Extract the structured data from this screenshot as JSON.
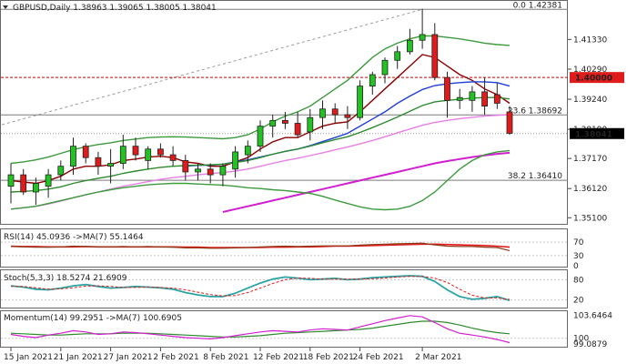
{
  "chart_data": {
    "type": "candlestick",
    "main": {
      "header": "GBPUSD,Daily  1.38963 1.39065 1.38005 1.38041",
      "y_ticks": [
        "1.41330",
        "1.40290",
        "1.39240",
        "1.38190",
        "1.37170",
        "1.36120",
        "1.35100"
      ],
      "y_tick_values": [
        1.4133,
        1.4029,
        1.3924,
        1.3819,
        1.3717,
        1.3612,
        1.351
      ],
      "ylim": [
        1.3495,
        1.4258
      ],
      "price_tag_current": "1.38041",
      "price_tag_level": "1.40000",
      "level_value": 1.4,
      "current_value": 1.38041,
      "fib_levels": [
        {
          "label": "0.0 1.42381",
          "value": 1.42381
        },
        {
          "label": "23.6 1.38692",
          "value": 1.38692
        },
        {
          "label": "38.2 1.36410",
          "value": 1.3641
        }
      ],
      "candles": [
        {
          "o": 1.362,
          "h": 1.37,
          "l": 1.356,
          "c": 1.366
        },
        {
          "o": 1.366,
          "h": 1.368,
          "l": 1.359,
          "c": 1.36
        },
        {
          "o": 1.36,
          "h": 1.365,
          "l": 1.3555,
          "c": 1.363
        },
        {
          "o": 1.362,
          "h": 1.368,
          "l": 1.358,
          "c": 1.366
        },
        {
          "o": 1.366,
          "h": 1.371,
          "l": 1.364,
          "c": 1.369
        },
        {
          "o": 1.369,
          "h": 1.379,
          "l": 1.366,
          "c": 1.376
        },
        {
          "o": 1.376,
          "h": 1.377,
          "l": 1.37,
          "c": 1.372
        },
        {
          "o": 1.372,
          "h": 1.374,
          "l": 1.366,
          "c": 1.369
        },
        {
          "o": 1.369,
          "h": 1.375,
          "l": 1.363,
          "c": 1.37
        },
        {
          "o": 1.37,
          "h": 1.38,
          "l": 1.368,
          "c": 1.376
        },
        {
          "o": 1.376,
          "h": 1.379,
          "l": 1.371,
          "c": 1.373
        },
        {
          "o": 1.371,
          "h": 1.376,
          "l": 1.368,
          "c": 1.375
        },
        {
          "o": 1.375,
          "h": 1.377,
          "l": 1.372,
          "c": 1.373
        },
        {
          "o": 1.373,
          "h": 1.376,
          "l": 1.369,
          "c": 1.371
        },
        {
          "o": 1.371,
          "h": 1.373,
          "l": 1.364,
          "c": 1.367
        },
        {
          "o": 1.367,
          "h": 1.37,
          "l": 1.364,
          "c": 1.368
        },
        {
          "o": 1.368,
          "h": 1.37,
          "l": 1.363,
          "c": 1.366
        },
        {
          "o": 1.366,
          "h": 1.37,
          "l": 1.362,
          "c": 1.369
        },
        {
          "o": 1.368,
          "h": 1.376,
          "l": 1.365,
          "c": 1.374
        },
        {
          "o": 1.373,
          "h": 1.378,
          "l": 1.37,
          "c": 1.376
        },
        {
          "o": 1.376,
          "h": 1.385,
          "l": 1.374,
          "c": 1.383
        },
        {
          "o": 1.383,
          "h": 1.387,
          "l": 1.379,
          "c": 1.385
        },
        {
          "o": 1.385,
          "h": 1.388,
          "l": 1.382,
          "c": 1.384
        },
        {
          "o": 1.384,
          "h": 1.388,
          "l": 1.379,
          "c": 1.38
        },
        {
          "o": 1.381,
          "h": 1.389,
          "l": 1.378,
          "c": 1.386
        },
        {
          "o": 1.386,
          "h": 1.392,
          "l": 1.382,
          "c": 1.389
        },
        {
          "o": 1.389,
          "h": 1.391,
          "l": 1.384,
          "c": 1.387
        },
        {
          "o": 1.387,
          "h": 1.39,
          "l": 1.382,
          "c": 1.386
        },
        {
          "o": 1.386,
          "h": 1.399,
          "l": 1.385,
          "c": 1.397
        },
        {
          "o": 1.397,
          "h": 1.402,
          "l": 1.394,
          "c": 1.401
        },
        {
          "o": 1.401,
          "h": 1.407,
          "l": 1.398,
          "c": 1.406
        },
        {
          "o": 1.406,
          "h": 1.411,
          "l": 1.403,
          "c": 1.409
        },
        {
          "o": 1.409,
          "h": 1.417,
          "l": 1.408,
          "c": 1.413
        },
        {
          "o": 1.413,
          "h": 1.424,
          "l": 1.41,
          "c": 1.415
        },
        {
          "o": 1.415,
          "h": 1.419,
          "l": 1.399,
          "c": 1.4
        },
        {
          "o": 1.4,
          "h": 1.402,
          "l": 1.386,
          "c": 1.392
        },
        {
          "o": 1.392,
          "h": 1.396,
          "l": 1.389,
          "c": 1.393
        },
        {
          "o": 1.392,
          "h": 1.397,
          "l": 1.388,
          "c": 1.395
        },
        {
          "o": 1.395,
          "h": 1.4,
          "l": 1.387,
          "c": 1.39
        },
        {
          "o": 1.394,
          "h": 1.398,
          "l": 1.389,
          "c": 1.391
        },
        {
          "o": 1.388,
          "h": 1.39,
          "l": 1.38,
          "c": 1.3805
        }
      ],
      "lines": [
        {
          "color": "#8b0000",
          "values": [
            1.364,
            1.3635,
            1.363,
            1.364,
            1.3655,
            1.368,
            1.369,
            1.369,
            1.3695,
            1.371,
            1.3715,
            1.3722,
            1.3725,
            1.372,
            1.3705,
            1.37,
            1.369,
            1.369,
            1.3705,
            1.372,
            1.375,
            1.3775,
            1.379,
            1.379,
            1.381,
            1.383,
            1.384,
            1.3845,
            1.388,
            1.392,
            1.396,
            1.4,
            1.404,
            1.408,
            1.407,
            1.404,
            1.401,
            1.399,
            1.396,
            1.394,
            1.391
          ]
        },
        {
          "color": "#1f3fd6",
          "values": [
            null,
            null,
            null,
            null,
            null,
            null,
            null,
            null,
            null,
            null,
            null,
            null,
            null,
            null,
            1.369,
            1.3693,
            1.3694,
            1.3697,
            1.3705,
            1.3712,
            1.3722,
            1.3732,
            1.3742,
            1.375,
            1.3762,
            1.3776,
            1.379,
            1.3805,
            1.383,
            1.3855,
            1.388,
            1.391,
            1.3935,
            1.3958,
            1.3972,
            1.3978,
            1.3982,
            1.3985,
            1.3985,
            1.3982,
            1.397
          ]
        },
        {
          "color": "#2e8b2e",
          "values": [
            1.36,
            1.3602,
            1.3605,
            1.361,
            1.3618,
            1.363,
            1.364,
            1.3648,
            1.3655,
            1.3665,
            1.3673,
            1.368,
            1.3686,
            1.369,
            1.3692,
            1.3694,
            1.3695,
            1.3697,
            1.3703,
            1.371,
            1.372,
            1.3732,
            1.3742,
            1.375,
            1.376,
            1.3772,
            1.3783,
            1.3793,
            1.3808,
            1.3825,
            1.3843,
            1.3862,
            1.3882,
            1.3902,
            1.3915,
            1.392,
            1.3924,
            1.3928,
            1.393,
            1.393,
            1.3925
          ]
        },
        {
          "color": "#e77fe7",
          "values": [
            1.354,
            1.3545,
            1.355,
            1.3558,
            1.3568,
            1.358,
            1.359,
            1.36,
            1.361,
            1.362,
            1.3628,
            1.3636,
            1.3644,
            1.365,
            1.3655,
            1.366,
            1.3664,
            1.3668,
            1.3673,
            1.368,
            1.369,
            1.37,
            1.371,
            1.3718,
            1.3727,
            1.3737,
            1.3747,
            1.3757,
            1.3768,
            1.378,
            1.3793,
            1.3807,
            1.382,
            1.3833,
            1.3843,
            1.385,
            1.3856,
            1.3861,
            1.3865,
            1.3868,
            1.387
          ]
        },
        {
          "color": "#d11ed1",
          "values": [
            null,
            null,
            null,
            null,
            null,
            null,
            null,
            null,
            null,
            null,
            null,
            null,
            null,
            null,
            null,
            null,
            null,
            1.353,
            1.354,
            1.355,
            1.356,
            1.357,
            1.358,
            1.359,
            1.36,
            1.361,
            1.362,
            1.363,
            1.364,
            1.365,
            1.366,
            1.367,
            1.368,
            1.369,
            1.37,
            1.3708,
            1.3715,
            1.3722,
            1.3728,
            1.3733,
            1.3737
          ]
        },
        {
          "color": "#3d9a3d",
          "values": [
            1.37,
            1.3705,
            1.3712,
            1.3722,
            1.3735,
            1.3748,
            1.3758,
            1.3766,
            1.3772,
            1.378,
            1.3785,
            1.379,
            1.3792,
            1.3793,
            1.3792,
            1.379,
            1.3788,
            1.3786,
            1.379,
            1.38,
            1.382,
            1.3845,
            1.3865,
            1.388,
            1.39,
            1.393,
            1.396,
            1.399,
            1.403,
            1.407,
            1.41,
            1.412,
            1.4135,
            1.4145,
            1.4145,
            1.414,
            1.4135,
            1.4128,
            1.412,
            1.4115,
            1.4112
          ]
        },
        {
          "color": "#3d9a3d",
          "values": [
            1.354,
            1.3545,
            1.355,
            1.356,
            1.357,
            1.358,
            1.359,
            1.36,
            1.3608,
            1.3615,
            1.362,
            1.3625,
            1.3628,
            1.363,
            1.363,
            1.3628,
            1.3626,
            1.3624,
            1.362,
            1.3615,
            1.3612,
            1.3608,
            1.3605,
            1.36,
            1.3595,
            1.3585,
            1.3572,
            1.356,
            1.3548,
            1.354,
            1.3538,
            1.354,
            1.355,
            1.357,
            1.36,
            1.364,
            1.368,
            1.371,
            1.373,
            1.374,
            1.3745
          ]
        }
      ]
    },
    "rsi": {
      "header": "RSI(14) 45.0936  ->MA(7) 55.1464",
      "y_ticks": [
        "70",
        "30",
        "0"
      ],
      "y_tick_values": [
        70,
        30,
        0
      ],
      "ylim": [
        0,
        100
      ],
      "rsi_values": [
        57,
        56,
        55,
        55,
        56,
        58,
        57,
        56,
        56,
        57,
        56,
        57,
        56,
        55,
        53,
        53,
        52,
        52,
        53,
        54,
        56,
        57,
        58,
        57,
        58,
        59,
        59,
        59,
        61,
        63,
        64,
        65,
        66,
        67,
        62,
        58,
        57,
        57,
        55,
        54,
        45
      ],
      "ma_values": [
        58,
        57,
        57,
        56,
        56,
        56,
        57,
        56,
        56,
        56,
        56,
        56,
        56,
        56,
        55,
        55,
        54,
        54,
        54,
        54,
        54,
        55,
        55,
        56,
        56,
        57,
        58,
        58,
        59,
        60,
        61,
        62,
        63,
        64,
        64,
        63,
        62,
        61,
        60,
        58,
        55
      ]
    },
    "stoch": {
      "header": "Stoch(5,3,3) 18.5274 21.6909",
      "y_ticks": [
        "80",
        "20"
      ],
      "y_tick_values": [
        80,
        20
      ],
      "ylim": [
        0,
        100
      ],
      "k_values": [
        62,
        58,
        52,
        50,
        55,
        62,
        66,
        60,
        55,
        57,
        60,
        58,
        56,
        52,
        42,
        35,
        30,
        30,
        40,
        55,
        70,
        82,
        88,
        85,
        80,
        82,
        84,
        80,
        82,
        86,
        88,
        90,
        92,
        90,
        75,
        50,
        30,
        22,
        25,
        30,
        18.5
      ],
      "d_values": [
        60,
        60,
        56,
        52,
        53,
        56,
        61,
        62,
        60,
        57,
        57,
        58,
        57,
        55,
        50,
        43,
        36,
        32,
        33,
        42,
        55,
        69,
        80,
        85,
        84,
        82,
        82,
        82,
        82,
        83,
        85,
        88,
        90,
        90,
        85,
        72,
        52,
        34,
        26,
        26,
        21.7
      ]
    },
    "momentum": {
      "header": "Momentum(14) 99.2951  ->MA(7) 100.6905",
      "y_ticks": [
        "103.6464",
        "100",
        "99.0879"
      ],
      "y_tick_values": [
        103.6464,
        100,
        99.0879
      ],
      "ylim": [
        98.8,
        104.0
      ],
      "mom_values": [
        100.6,
        100.3,
        100.1,
        100.5,
        100.8,
        101.2,
        101.0,
        100.6,
        100.7,
        101.0,
        100.9,
        100.7,
        100.5,
        100.3,
        100.1,
        100.0,
        99.9,
        100.1,
        100.4,
        100.7,
        101.0,
        101.2,
        101.1,
        101.0,
        101.3,
        101.5,
        101.4,
        101.3,
        101.8,
        102.3,
        102.8,
        103.2,
        103.6,
        103.4,
        102.5,
        101.5,
        100.8,
        100.5,
        100.2,
        99.8,
        99.3
      ],
      "ma_values": [
        100.8,
        100.7,
        100.6,
        100.5,
        100.5,
        100.6,
        100.7,
        100.7,
        100.7,
        100.8,
        100.8,
        100.8,
        100.7,
        100.6,
        100.5,
        100.4,
        100.3,
        100.2,
        100.2,
        100.3,
        100.4,
        100.6,
        100.8,
        100.9,
        101.0,
        101.1,
        101.2,
        101.3,
        101.4,
        101.6,
        101.9,
        102.2,
        102.5,
        102.7,
        102.7,
        102.5,
        102.1,
        101.6,
        101.2,
        100.9,
        100.7
      ]
    },
    "x_labels": [
      "15 Jan 2021",
      "21 Jan 2021",
      "27 Jan 2021",
      "2 Feb 2021",
      "8 Feb 2021",
      "12 Feb 2021",
      "18 Feb 2021",
      "24 Feb 2021",
      "2 Mar 2021"
    ],
    "x_label_index": [
      0,
      4,
      8,
      12,
      16,
      20,
      24,
      28,
      33
    ]
  }
}
